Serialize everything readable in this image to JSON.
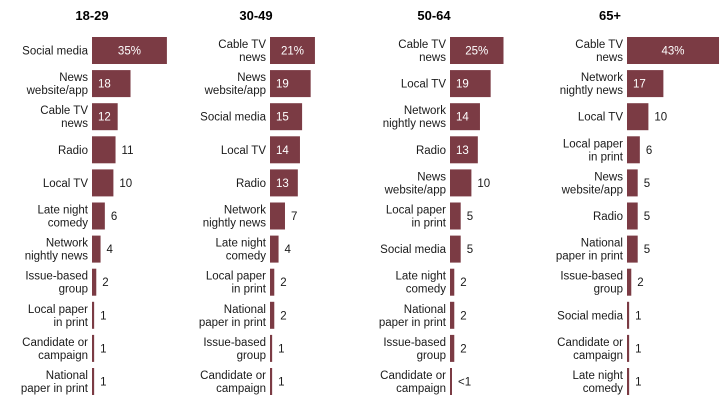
{
  "chart_data": [
    {
      "type": "bar",
      "title": "18-29",
      "color": "#7b3b44",
      "categories": [
        "Social media",
        "News\nwebsite/app",
        "Cable TV\nnews",
        "Radio",
        "Local TV",
        "Late night\ncomedy",
        "Network\nnightly news",
        "Issue-based\ngroup",
        "Local paper\nin print",
        "Candidate or\ncampaign",
        "National\npaper in print"
      ],
      "values": [
        35,
        18,
        12,
        11,
        10,
        6,
        4,
        2,
        1,
        1,
        1
      ],
      "labels": [
        "35%",
        "18",
        "12",
        "11",
        "10",
        "6",
        "4",
        "2",
        "1",
        "1",
        "1"
      ]
    },
    {
      "type": "bar",
      "title": "30-49",
      "color": "#7b3b44",
      "categories": [
        "Cable TV\nnews",
        "News\nwebsite/app",
        "Social media",
        "Local TV",
        "Radio",
        "Network\nnightly news",
        "Late night\ncomedy",
        "Local paper\nin print",
        "National\npaper in print",
        "Issue-based\ngroup",
        "Candidate or\ncampaign"
      ],
      "values": [
        21,
        19,
        15,
        14,
        13,
        7,
        4,
        2,
        2,
        1,
        1
      ],
      "labels": [
        "21%",
        "19",
        "15",
        "14",
        "13",
        "7",
        "4",
        "2",
        "2",
        "1",
        "1"
      ]
    },
    {
      "type": "bar",
      "title": "50-64",
      "color": "#7b3b44",
      "categories": [
        "Cable TV\nnews",
        "Local TV",
        "Network\nnightly news",
        "Radio",
        "News\nwebsite/app",
        "Local paper\nin print",
        "Social media",
        "Late night\ncomedy",
        "National\npaper in print",
        "Issue-based\ngroup",
        "Candidate or\ncampaign"
      ],
      "values": [
        25,
        19,
        14,
        13,
        10,
        5,
        5,
        2,
        2,
        2,
        0.5
      ],
      "labels": [
        "25%",
        "19",
        "14",
        "13",
        "10",
        "5",
        "5",
        "2",
        "2",
        "2",
        "<1"
      ]
    },
    {
      "type": "bar",
      "title": "65+",
      "color": "#7b3b44",
      "categories": [
        "Cable TV\nnews",
        "Network\nnightly news",
        "Local TV",
        "Local paper\nin print",
        "News\nwebsite/app",
        "Radio",
        "National\npaper in print",
        "Issue-based\ngroup",
        "Social media",
        "Candidate or\ncampaign",
        "Late night\ncomedy"
      ],
      "values": [
        43,
        17,
        10,
        6,
        5,
        5,
        5,
        2,
        1,
        1,
        1
      ],
      "labels": [
        "43%",
        "17",
        "10",
        "6",
        "5",
        "5",
        "5",
        "2",
        "1",
        "1",
        "1"
      ]
    }
  ]
}
